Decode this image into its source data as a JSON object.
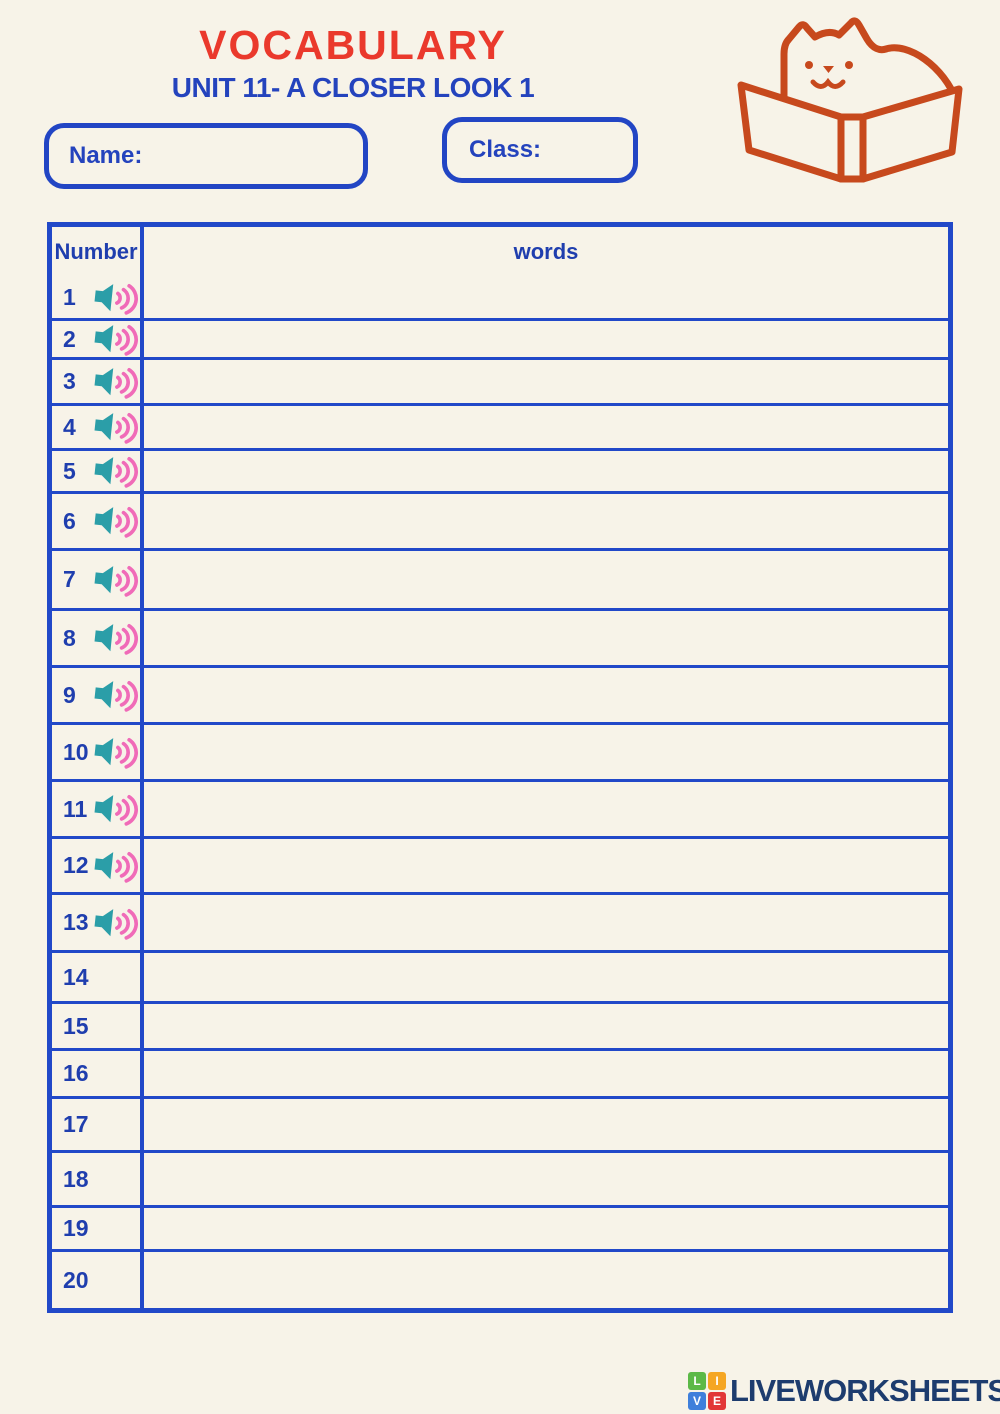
{
  "header": {
    "title": "VOCABULARY",
    "subtitle": "UNIT 11- A CLOSER LOOK 1"
  },
  "fields": {
    "name_label": "Name:",
    "class_label": "Class:"
  },
  "illustration": {
    "icon": "cat-reading-book-icon",
    "color": "#C7491D"
  },
  "table": {
    "number_header": "Number",
    "words_header": "words",
    "rows": [
      {
        "number": "1",
        "audio": true,
        "word": ""
      },
      {
        "number": "2",
        "audio": true,
        "word": ""
      },
      {
        "number": "3",
        "audio": true,
        "word": ""
      },
      {
        "number": "4",
        "audio": true,
        "word": ""
      },
      {
        "number": "5",
        "audio": true,
        "word": ""
      },
      {
        "number": "6",
        "audio": true,
        "word": ""
      },
      {
        "number": "7",
        "audio": true,
        "word": ""
      },
      {
        "number": "8",
        "audio": true,
        "word": ""
      },
      {
        "number": "9",
        "audio": true,
        "word": ""
      },
      {
        "number": "10",
        "audio": true,
        "word": ""
      },
      {
        "number": "11",
        "audio": true,
        "word": ""
      },
      {
        "number": "12",
        "audio": true,
        "word": ""
      },
      {
        "number": "13",
        "audio": true,
        "word": ""
      },
      {
        "number": "14",
        "audio": false,
        "word": ""
      },
      {
        "number": "15",
        "audio": false,
        "word": ""
      },
      {
        "number": "16",
        "audio": false,
        "word": ""
      },
      {
        "number": "17",
        "audio": false,
        "word": ""
      },
      {
        "number": "18",
        "audio": false,
        "word": ""
      },
      {
        "number": "19",
        "audio": false,
        "word": ""
      },
      {
        "number": "20",
        "audio": false,
        "word": ""
      }
    ]
  },
  "footer": {
    "logo_text": "LIVEWORKSHEETS",
    "logo_squares": [
      {
        "letter": "L",
        "color": "#5CB947"
      },
      {
        "letter": "I",
        "color": "#F5A623"
      },
      {
        "letter": "V",
        "color": "#3F7FDB"
      },
      {
        "letter": "E",
        "color": "#E23737"
      }
    ]
  },
  "colors": {
    "background": "#F7F3E8",
    "border_blue": "#2148C8",
    "text_navy": "#1F3EAE",
    "title_red": "#EA392C",
    "subtitle_blue": "#2443BD",
    "cat_orange": "#C7491D",
    "speaker_teal": "#2B9EA8",
    "speaker_wave_pink": "#F06BB8",
    "logo_navy": "#1D3C6E"
  }
}
